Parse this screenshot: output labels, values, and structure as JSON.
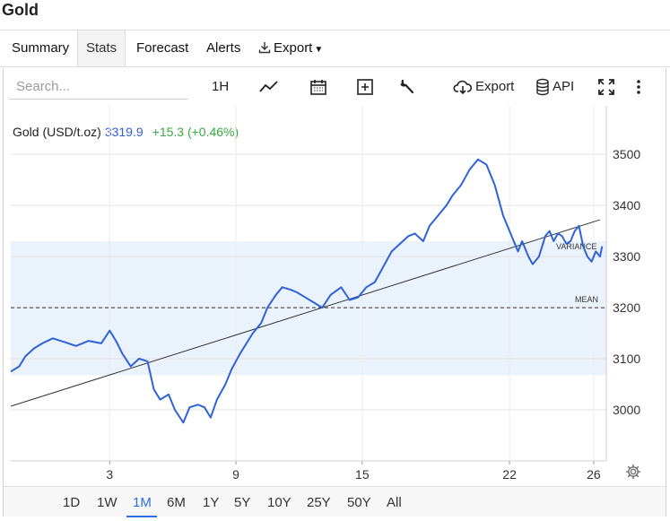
{
  "page": {
    "title": "Gold"
  },
  "tabs": [
    {
      "label": "Summary"
    },
    {
      "label": "Stats"
    },
    {
      "label": "Forecast"
    },
    {
      "label": "Alerts"
    },
    {
      "label": "Export"
    }
  ],
  "toolbar": {
    "search_placeholder": "Search...",
    "interval": "1H",
    "export_label": "Export",
    "api_label": "API",
    "icons": [
      "line-chart-icon",
      "calendar-icon",
      "plus-box-icon",
      "wrench-icon",
      "cloud-download-icon",
      "database-icon",
      "fullscreen-icon",
      "more-vertical-icon"
    ]
  },
  "ticker": {
    "name": "Gold (USD/t.oz)",
    "price": "3319.9",
    "change": "+15.3 (+0.46%)",
    "change_color": "#39a845",
    "price_color": "#2f5fd4"
  },
  "ranges": {
    "items": [
      "1D",
      "1W",
      "1M",
      "6M",
      "1Y",
      "5Y",
      "10Y",
      "25Y",
      "50Y",
      "All"
    ],
    "active": "1M"
  },
  "chart_data": {
    "type": "line",
    "title": "",
    "xlabel": "",
    "ylabel": "",
    "x_ticks": [
      "3",
      "9",
      "15",
      "22",
      "26"
    ],
    "x_tick_values": [
      3,
      9,
      15,
      22,
      26
    ],
    "xlim": [
      -1.7,
      26.6
    ],
    "y_ticks": [
      "3000",
      "3100",
      "3200",
      "3300",
      "3400",
      "3500"
    ],
    "ylim": [
      2900,
      3595
    ],
    "grid": true,
    "series": [
      {
        "color": "#2f62d8",
        "x": [
          -1.7,
          -1.3,
          -1.0,
          -0.6,
          -0.2,
          0.3,
          0.9,
          1.4,
          2.0,
          2.6,
          3.0,
          3.3,
          3.6,
          4.0,
          4.4,
          4.8,
          5.1,
          5.4,
          5.8,
          6.1,
          6.5,
          6.8,
          7.2,
          7.5,
          7.8,
          8.1,
          8.5,
          8.8,
          9.2,
          9.5,
          9.8,
          10.2,
          10.5,
          10.9,
          11.2,
          11.6,
          11.9,
          12.3,
          12.7,
          13.1,
          13.5,
          14.0,
          14.4,
          14.8,
          15.2,
          15.6,
          16.0,
          16.4,
          16.8,
          17.2,
          17.5,
          17.9,
          18.2,
          18.6,
          19.0,
          19.3,
          19.7,
          20.1,
          20.5,
          20.9,
          21.3,
          21.7,
          22.0,
          22.4,
          22.6,
          22.9,
          23.1,
          23.4,
          23.7,
          23.9,
          24.1,
          24.3,
          24.5,
          24.7,
          24.9,
          25.1,
          25.3,
          25.5,
          25.7,
          25.9,
          26.1,
          26.3,
          26.4
        ],
        "y": [
          3075,
          3085,
          3105,
          3120,
          3130,
          3140,
          3132,
          3125,
          3135,
          3130,
          3155,
          3135,
          3110,
          3085,
          3100,
          3095,
          3040,
          3020,
          3030,
          3000,
          2975,
          3005,
          3010,
          3005,
          2985,
          3020,
          3050,
          3080,
          3110,
          3130,
          3150,
          3170,
          3200,
          3225,
          3240,
          3235,
          3230,
          3220,
          3210,
          3200,
          3225,
          3240,
          3215,
          3220,
          3240,
          3250,
          3280,
          3310,
          3325,
          3340,
          3345,
          3330,
          3360,
          3380,
          3400,
          3420,
          3440,
          3470,
          3490,
          3480,
          3440,
          3380,
          3350,
          3310,
          3330,
          3300,
          3285,
          3300,
          3340,
          3350,
          3330,
          3345,
          3340,
          3325,
          3330,
          3350,
          3360,
          3320,
          3300,
          3290,
          3310,
          3300,
          3320
        ]
      }
    ],
    "trendline": {
      "color": "#333333",
      "from": [
        -1.7,
        3007
      ],
      "to": [
        26.3,
        3372
      ]
    },
    "mean": {
      "label": "MEAN",
      "value": 3200
    },
    "variance_band": {
      "label": "VARIANCE",
      "from": 3068,
      "to": 3330,
      "color": "#eaf2fb"
    }
  }
}
